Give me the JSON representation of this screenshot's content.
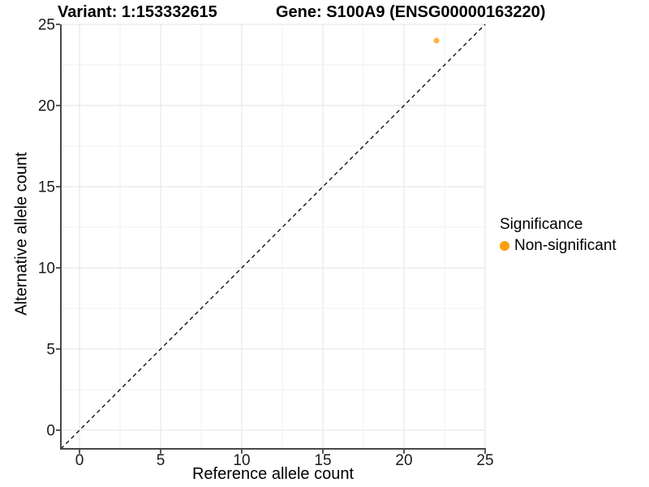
{
  "header": {
    "title_variant": "Variant: 1:153332615",
    "title_gene": "Gene: S100A9 (ENSG00000163220)"
  },
  "chart_data": {
    "type": "scatter",
    "xlabel": "Reference allele count",
    "ylabel": "Alternative allele count",
    "xlim": [
      -1.15,
      25
    ],
    "ylim": [
      -1.15,
      25
    ],
    "x_ticks": [
      0,
      5,
      10,
      15,
      20,
      25
    ],
    "y_ticks": [
      0,
      5,
      10,
      15,
      20,
      25
    ],
    "x_minor_ticks": [
      2.5,
      7.5,
      12.5,
      17.5,
      22.5
    ],
    "y_minor_ticks": [
      2.5,
      7.5,
      12.5,
      17.5,
      22.5
    ],
    "grid": "major+minor",
    "identity_line": {
      "slope": 1,
      "intercept": 0,
      "style": "dashed"
    },
    "series": [
      {
        "name": "Non-significant",
        "color": "#FF9E0D",
        "point_opacity": 0.78,
        "points": [
          {
            "x": 22,
            "y": 24
          }
        ]
      }
    ],
    "legend": {
      "title": "Significance",
      "position": "right",
      "items": [
        {
          "label": "Non-significant",
          "color": "#FF9E0D"
        }
      ]
    }
  },
  "colors": {
    "background": "#FFFFFF",
    "grid_major": "#E3E3E3",
    "grid_minor": "#F1F1F1",
    "axis_line": "#474747",
    "tick_mark": "#474747",
    "tick_text": "#1A1A1A",
    "identity_line": "#000000"
  }
}
